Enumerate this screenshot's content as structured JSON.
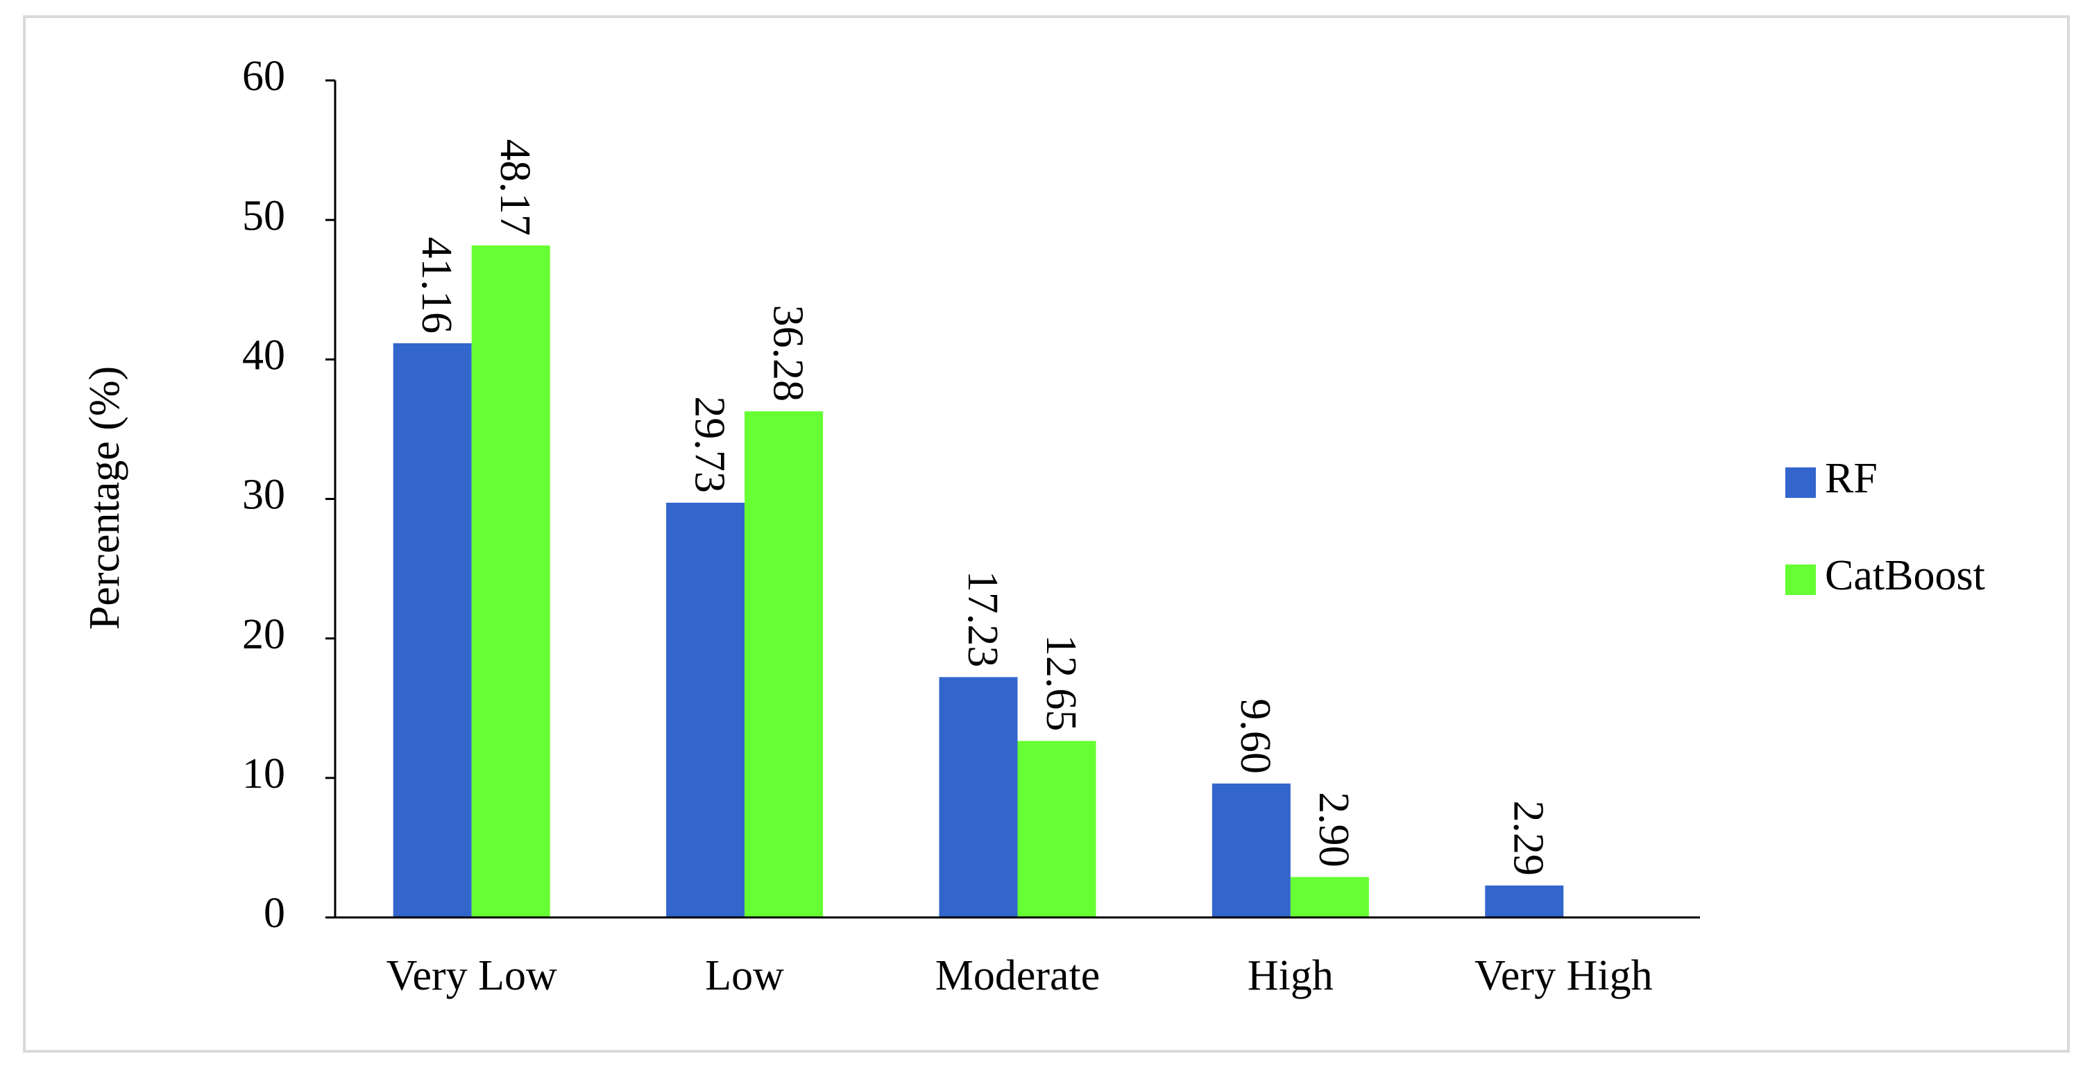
{
  "chart_data": {
    "type": "bar",
    "categories": [
      "Very Low",
      "Low",
      "Moderate",
      "High",
      "Very High"
    ],
    "series": [
      {
        "name": "RF",
        "values": [
          41.16,
          29.73,
          17.23,
          9.6,
          2.29
        ],
        "labels": [
          "41.16",
          "29.73",
          "17.23",
          "9.60",
          "2.29"
        ],
        "color": "#3366cc"
      },
      {
        "name": "CatBoost",
        "values": [
          48.17,
          36.28,
          12.65,
          2.9,
          null
        ],
        "labels": [
          "48.17",
          "36.28",
          "12.65",
          "2.90",
          ""
        ],
        "color": "#66ff33"
      }
    ],
    "title": "",
    "xlabel": "",
    "ylabel": "Percentage (%)",
    "ylim": [
      0,
      60
    ],
    "yticks": [
      0,
      10,
      20,
      30,
      40,
      50,
      60
    ],
    "ytick_labels": [
      "0",
      "10",
      "20",
      "30",
      "40",
      "50",
      "60"
    ],
    "grid": false,
    "legend_position": "right",
    "frame_color": "#d9d9d9",
    "axis_color": "#000000"
  }
}
